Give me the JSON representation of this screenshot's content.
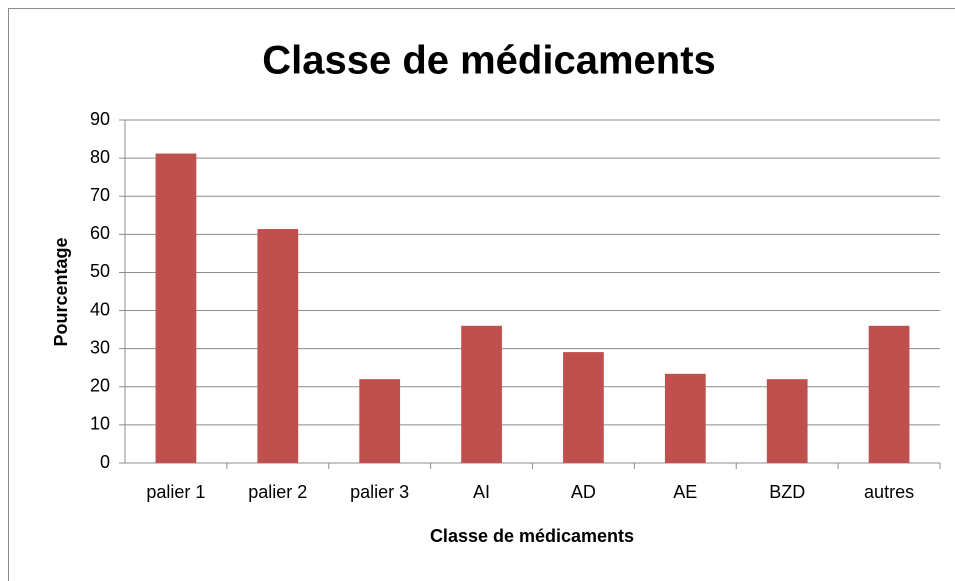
{
  "chart_data": {
    "type": "bar",
    "title": "Classe de médicaments",
    "x_label": "Classe de médicaments",
    "y_label": "Pourcentage",
    "categories": [
      "palier 1",
      "palier 2",
      "palier 3",
      "AI",
      "AD",
      "AE",
      "BZD",
      "autres"
    ],
    "values": [
      81.2,
      61.4,
      22,
      36,
      29.1,
      23.4,
      22,
      36
    ],
    "color": "#c0504d",
    "ylim": [
      0,
      90
    ],
    "yticks": [
      0,
      10,
      20,
      30,
      40,
      50,
      60,
      70,
      80,
      90
    ],
    "grid": true
  }
}
